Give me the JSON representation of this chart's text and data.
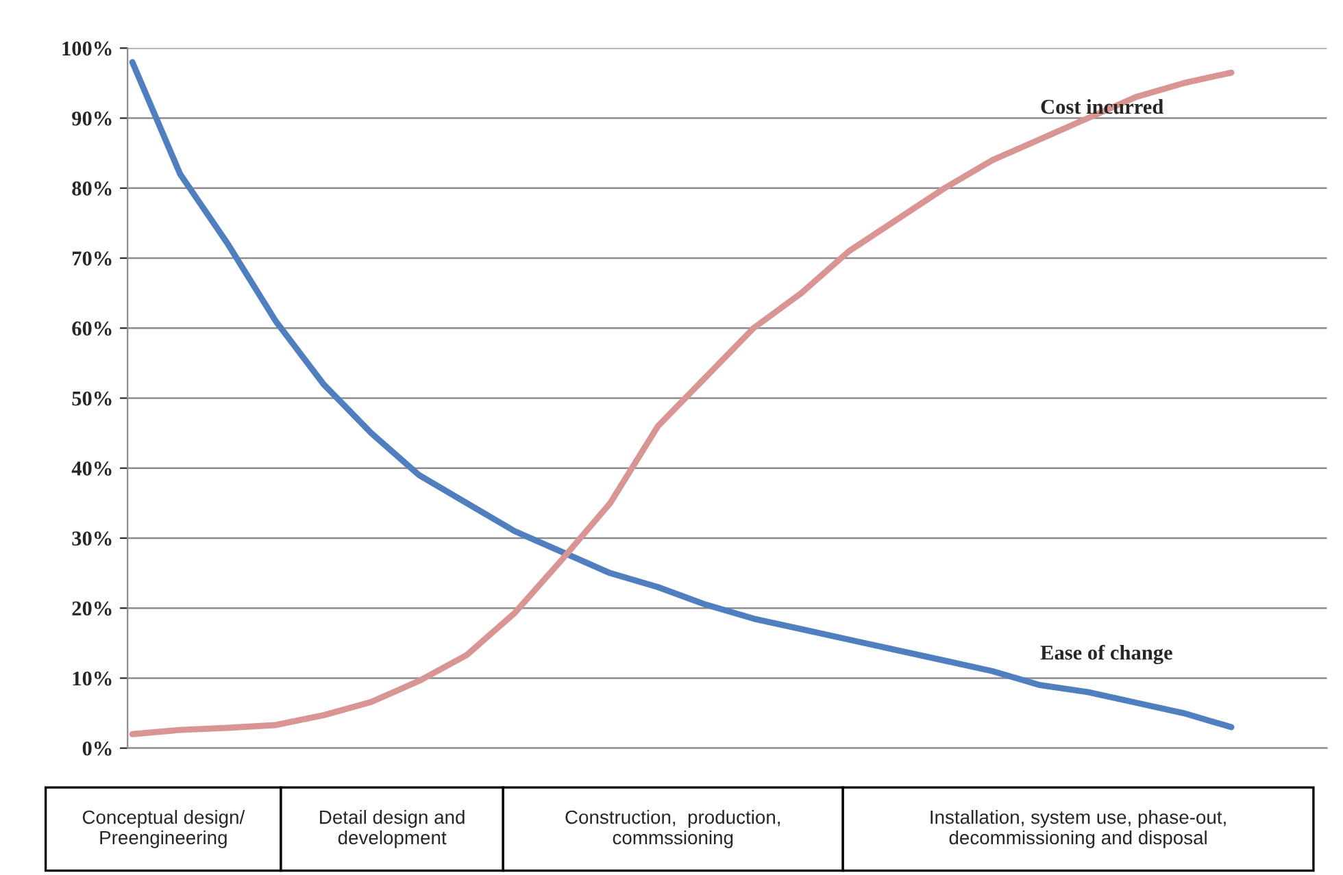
{
  "chart_data": {
    "type": "line",
    "categories": [
      null,
      null,
      null,
      null,
      null,
      null,
      null,
      null,
      null,
      null,
      null,
      null,
      null,
      null,
      null,
      null,
      null,
      null,
      null,
      null,
      null,
      null,
      null,
      null,
      null,
      null
    ],
    "series": [
      {
        "name": "Ease of change",
        "color": "#4f7fbf",
        "values": [
          98,
          82,
          72,
          61,
          52,
          45,
          39,
          35,
          31,
          28,
          25,
          23,
          20.5,
          18.5,
          17,
          15.5,
          14,
          12.5,
          11,
          9,
          8,
          6.5,
          5,
          3,
          null,
          null
        ]
      },
      {
        "name": "Cost incurred",
        "color": "#d99594",
        "values": [
          2,
          2.6,
          2.9,
          3.3,
          4.7,
          6.6,
          9.6,
          13.3,
          19.3,
          27,
          35,
          46,
          53,
          60,
          65,
          71,
          75.5,
          80,
          84,
          87,
          90,
          93,
          95,
          96.5,
          null,
          null
        ]
      }
    ],
    "ylim": [
      0,
      100
    ],
    "yticks": [
      {
        "value": 0,
        "label": "0%"
      },
      {
        "value": 10,
        "label": "10%"
      },
      {
        "value": 20,
        "label": "20%"
      },
      {
        "value": 30,
        "label": "30%"
      },
      {
        "value": 40,
        "label": "40%"
      },
      {
        "value": 50,
        "label": "50%"
      },
      {
        "value": 60,
        "label": "60%"
      },
      {
        "value": 70,
        "label": "70%"
      },
      {
        "value": 80,
        "label": "80%"
      },
      {
        "value": 90,
        "label": "90%"
      },
      {
        "value": 100,
        "label": "100%"
      }
    ],
    "grid": "y",
    "legend": false,
    "marker": "none",
    "line_style": "solid",
    "annotations": [
      "Conceptual design/\nPreengineering",
      "Detail design and\ndevelopment",
      "Construction,  production,\ncommssioning",
      "Installation, system use, phase-out,\ndecommissioning and disposal"
    ]
  }
}
